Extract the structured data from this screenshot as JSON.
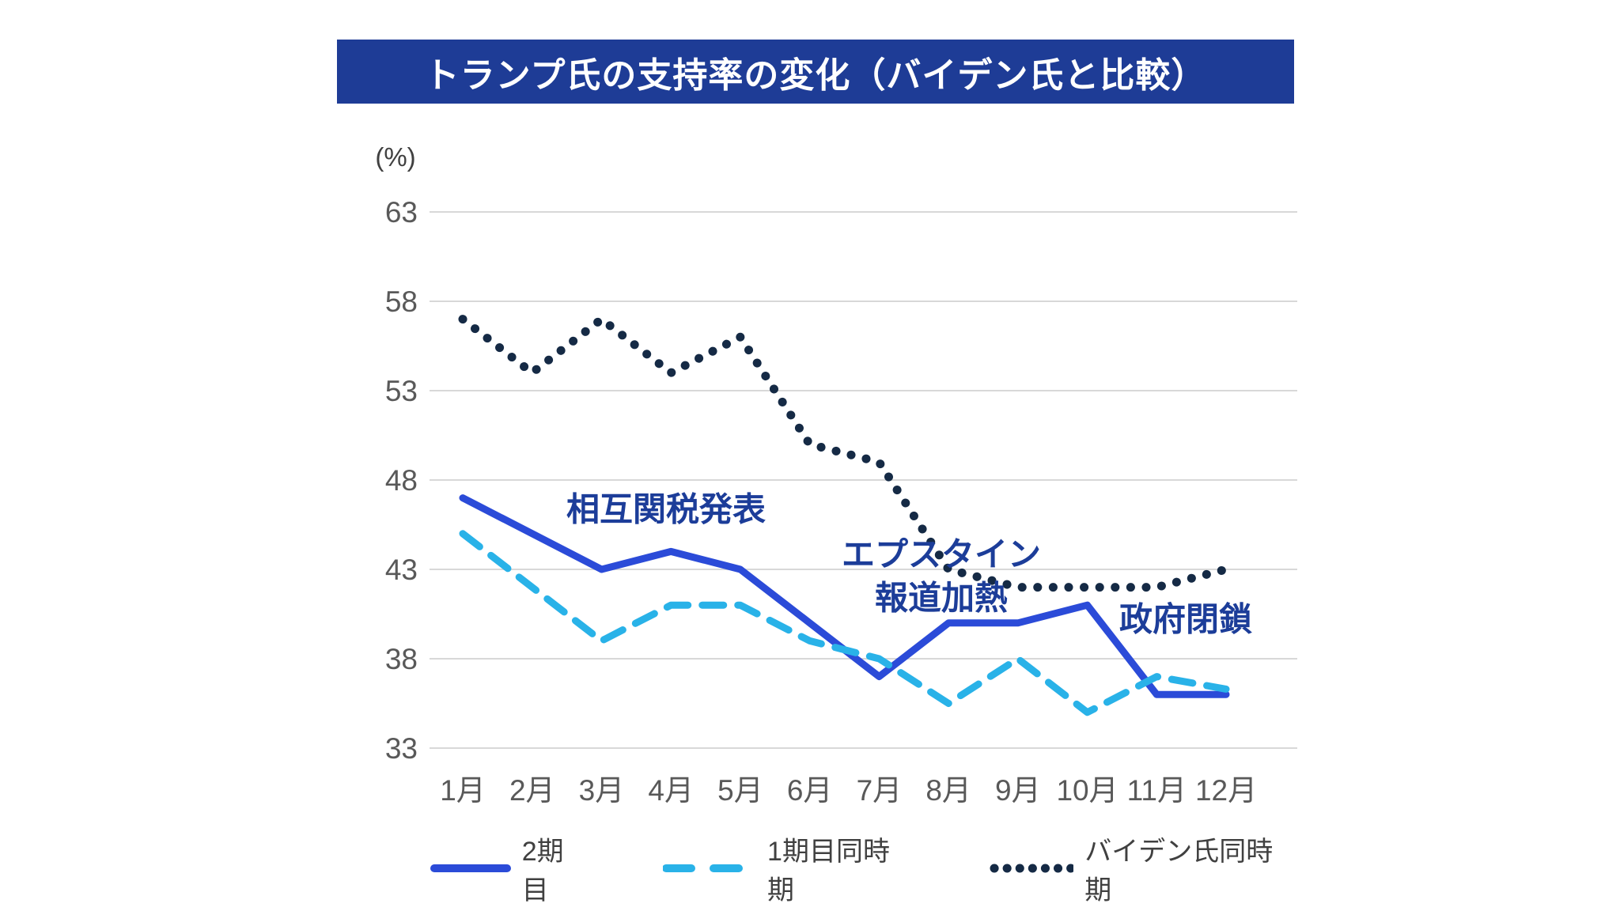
{
  "title": "トランプ氏の支持率の変化（バイデン氏と比較）",
  "colors": {
    "title_bar_bg": "#1E3C96",
    "title_text": "#FFFFFF",
    "annotation_text": "#1C3D99",
    "axis_text": "#595959",
    "gridline": "#D8D8D8",
    "background": "#FFFFFF",
    "series_term2": "#2B4BD8",
    "series_term1": "#29B2E8",
    "series_biden": "#152A45"
  },
  "chart_data": {
    "type": "line",
    "title": "トランプ氏の支持率の変化（バイデン氏と比較）",
    "unit_label": "(%)",
    "categories": [
      "1月",
      "2月",
      "3月",
      "4月",
      "5月",
      "6月",
      "7月",
      "8月",
      "9月",
      "10月",
      "11月",
      "12月"
    ],
    "y_ticks": [
      63,
      58,
      53,
      48,
      43,
      38,
      33
    ],
    "ylim": [
      33,
      63
    ],
    "grid": "horizontal-only",
    "legend_position": "bottom",
    "series": [
      {
        "name": "2期目",
        "style": "solid",
        "color": "#2B4BD8",
        "values": [
          47,
          45,
          43,
          44,
          43,
          40,
          37,
          40,
          40,
          41,
          36,
          36
        ]
      },
      {
        "name": "1期目同時期",
        "style": "dashed",
        "color": "#29B2E8",
        "values": [
          45,
          42,
          39,
          41,
          41,
          39,
          38,
          35.5,
          38,
          35,
          37,
          36.3
        ]
      },
      {
        "name": "バイデン氏同時期",
        "style": "dotted",
        "color": "#152A45",
        "values": [
          57,
          54,
          57,
          54,
          56,
          50,
          49,
          43,
          42,
          42,
          42,
          43
        ]
      }
    ]
  },
  "annotations": [
    {
      "text": "相互関税発表"
    },
    {
      "text": "エプスタイン\n報道加熱"
    },
    {
      "text": "政府閉鎖"
    }
  ],
  "legend": {
    "items": [
      {
        "label": "2期目"
      },
      {
        "label": "1期目同時期"
      },
      {
        "label": "バイデン氏同時期"
      }
    ]
  }
}
